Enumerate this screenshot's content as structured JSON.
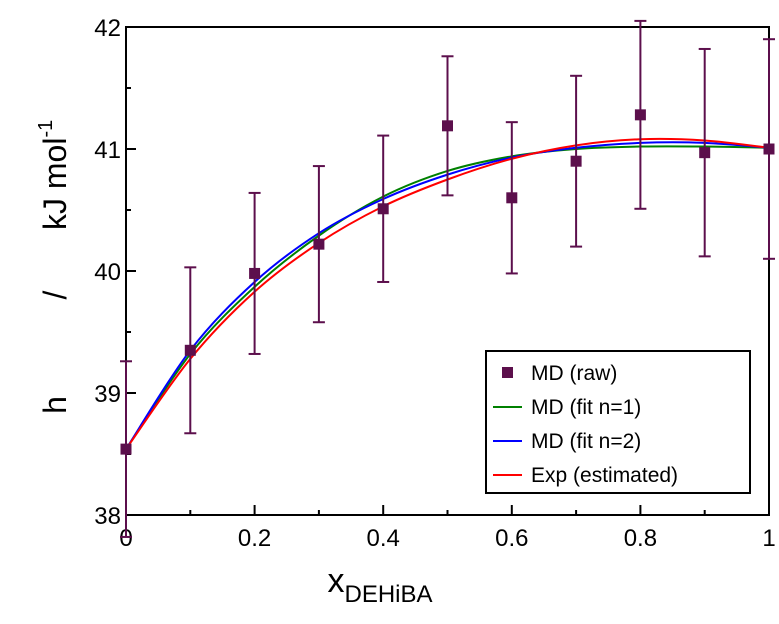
{
  "chart_data": {
    "type": "scatter",
    "xlim": [
      0,
      1
    ],
    "ylim": [
      38,
      42
    ],
    "x_ticks": [
      0,
      0.2,
      0.4,
      0.6,
      0.8,
      1
    ],
    "y_ticks": [
      38,
      39,
      40,
      41,
      42
    ],
    "x_tick_labels": [
      "0",
      "0.2",
      "0.4",
      "0.6",
      "0.8",
      "1"
    ],
    "y_tick_labels": [
      "38",
      "39",
      "40",
      "41",
      "42"
    ],
    "xlabel": {
      "main": "x",
      "sub": "DEHiBA"
    },
    "ylabel": {
      "symbol": "h",
      "separator": "/",
      "unit": "kJ mol",
      "exp": "-1"
    },
    "grid": false,
    "legend_position": "bottom-right",
    "series": [
      {
        "name": "MD (raw)",
        "kind": "points-with-errorbars",
        "color": "#5c0f4c",
        "points": [
          {
            "x": 0.0,
            "y": 38.54,
            "err": 0.72
          },
          {
            "x": 0.1,
            "y": 39.35,
            "err": 0.68
          },
          {
            "x": 0.2,
            "y": 39.98,
            "err": 0.66
          },
          {
            "x": 0.3,
            "y": 40.22,
            "err": 0.64
          },
          {
            "x": 0.4,
            "y": 40.51,
            "err": 0.6
          },
          {
            "x": 0.5,
            "y": 41.19,
            "err": 0.57
          },
          {
            "x": 0.6,
            "y": 40.6,
            "err": 0.62
          },
          {
            "x": 0.7,
            "y": 40.9,
            "err": 0.7
          },
          {
            "x": 0.8,
            "y": 41.28,
            "err": 0.77
          },
          {
            "x": 0.9,
            "y": 40.97,
            "err": 0.85
          },
          {
            "x": 1.0,
            "y": 41.0,
            "err": 0.9
          }
        ]
      },
      {
        "name": "MD (fit n=1)",
        "kind": "line",
        "color": "#008000",
        "x": [
          0,
          0.1,
          0.2,
          0.3,
          0.4,
          0.5,
          0.6,
          0.7,
          0.8,
          0.9,
          1.0
        ],
        "y": [
          38.54,
          39.32,
          39.87,
          40.29,
          40.61,
          40.82,
          40.94,
          41.0,
          41.02,
          41.02,
          41.01
        ]
      },
      {
        "name": "MD (fit n=2)",
        "kind": "line",
        "color": "#0000ff",
        "x": [
          0,
          0.1,
          0.2,
          0.3,
          0.4,
          0.5,
          0.6,
          0.7,
          0.8,
          0.9,
          1.0
        ],
        "y": [
          38.54,
          39.35,
          39.91,
          40.31,
          40.59,
          40.79,
          40.93,
          41.01,
          41.05,
          41.05,
          41.01
        ]
      },
      {
        "name": "Exp (estimated)",
        "kind": "line",
        "color": "#ff0000",
        "x": [
          0,
          0.1,
          0.2,
          0.3,
          0.4,
          0.5,
          0.6,
          0.7,
          0.8,
          0.9,
          1.0
        ],
        "y": [
          38.54,
          39.28,
          39.83,
          40.23,
          40.53,
          40.75,
          40.92,
          41.03,
          41.08,
          41.07,
          41.01
        ]
      }
    ]
  }
}
